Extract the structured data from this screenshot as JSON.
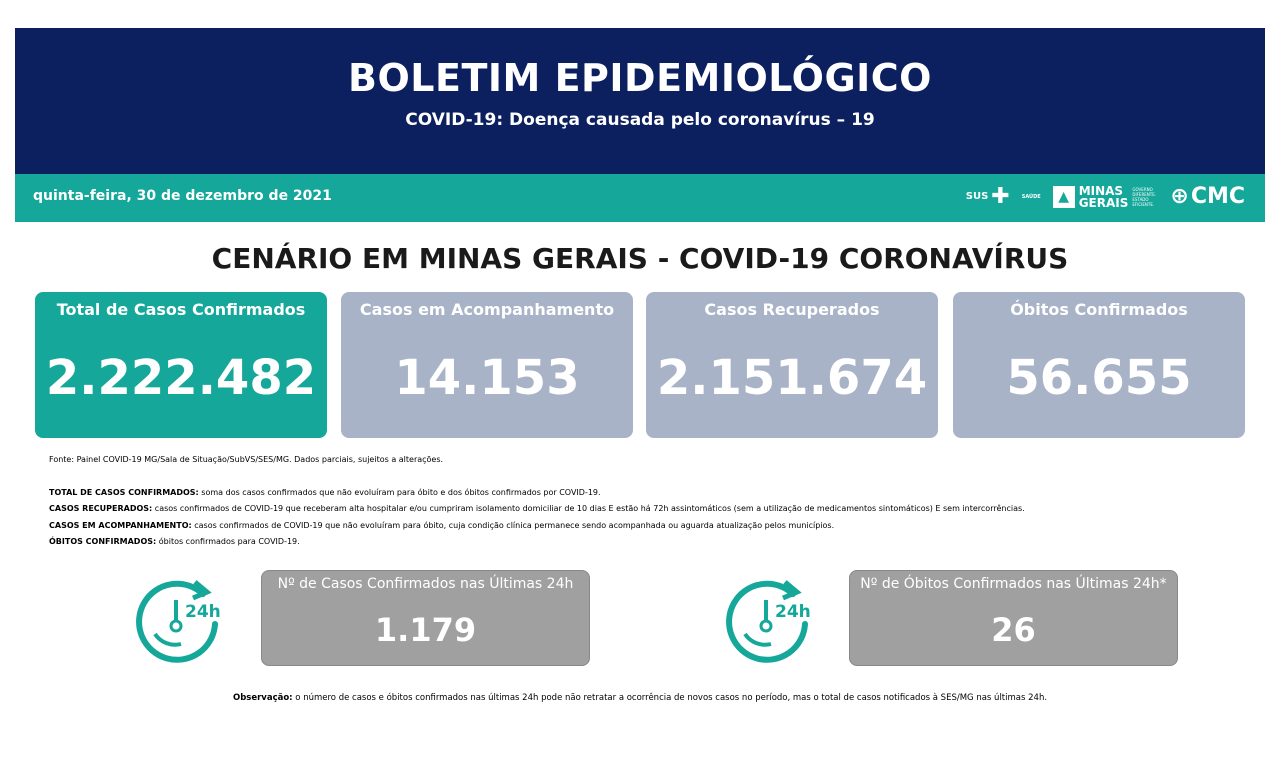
{
  "header": {
    "title": "BOLETIM EPIDEMIOLÓGICO",
    "subtitle": "COVID-19: Doença causada pelo coronavírus – 19"
  },
  "band": {
    "date": "quinta-feira, 30 de dezembro de 2021",
    "logos": {
      "sus": "SUS",
      "saude": "SAÚDE",
      "minas": "MINAS",
      "gerais": "GERAIS",
      "governo": "GOVERNO DIFERENTE. ESTADO EFICIENTE.",
      "cmc": "CMC"
    }
  },
  "section_title": "CENÁRIO EM MINAS GERAIS - COVID-19 CORONAVÍRUS",
  "cards": [
    {
      "label": "Total de Casos Confirmados",
      "value": "2.222.482"
    },
    {
      "label": "Casos em Acompanhamento",
      "value": "14.153"
    },
    {
      "label": "Casos Recuperados",
      "value": "2.151.674"
    },
    {
      "label": "Óbitos Confirmados",
      "value": "56.655"
    }
  ],
  "source": "Fonte: Painel COVID-19 MG/Sala de Situação/SubVS/SES/MG. Dados parciais, sujeitos a alterações.",
  "definitions": [
    {
      "term": "TOTAL DE  CASOS CONFIRMADOS:",
      "text": " soma dos casos confirmados que não evoluíram para óbito e dos óbitos confirmados por COVID-19."
    },
    {
      "term": "CASOS RECUPERADOS:",
      "text": " casos confirmados de COVID-19 que receberam alta hospitalar e/ou cumpriram isolamento domiciliar de 10 dias E estão há 72h assintomáticos (sem a utilização de medicamentos sintomáticos) E sem intercorrências."
    },
    {
      "term": "CASOS EM ACOMPANHAMENTO:",
      "text": " casos confirmados de COVID-19 que não evoluíram para óbito, cuja condição clínica permanece sendo acompanhada ou aguarda atualização pelos municípios."
    },
    {
      "term": "ÓBITOS CONFIRMADOS:",
      "text": " óbitos confirmados para COVID-19."
    }
  ],
  "last24": [
    {
      "label": "Nº de Casos Confirmados nas Últimas 24h",
      "value": "1.179",
      "icon_text": "24h"
    },
    {
      "label": "Nº de Óbitos Confirmados nas Últimas 24h*",
      "value": "26",
      "icon_text": "24h"
    }
  ],
  "observation": {
    "term": "Observação:",
    "text": " o número de casos e óbitos confirmados nas últimas 24h pode não retratar a ocorrência de novos casos no período, mas o total de casos notificados à SES/MG nas últimas 24h."
  },
  "colors": {
    "navy": "#0c1f5e",
    "teal": "#14a79a",
    "card": "#a8b3c7",
    "box": "#a0a0a0"
  }
}
